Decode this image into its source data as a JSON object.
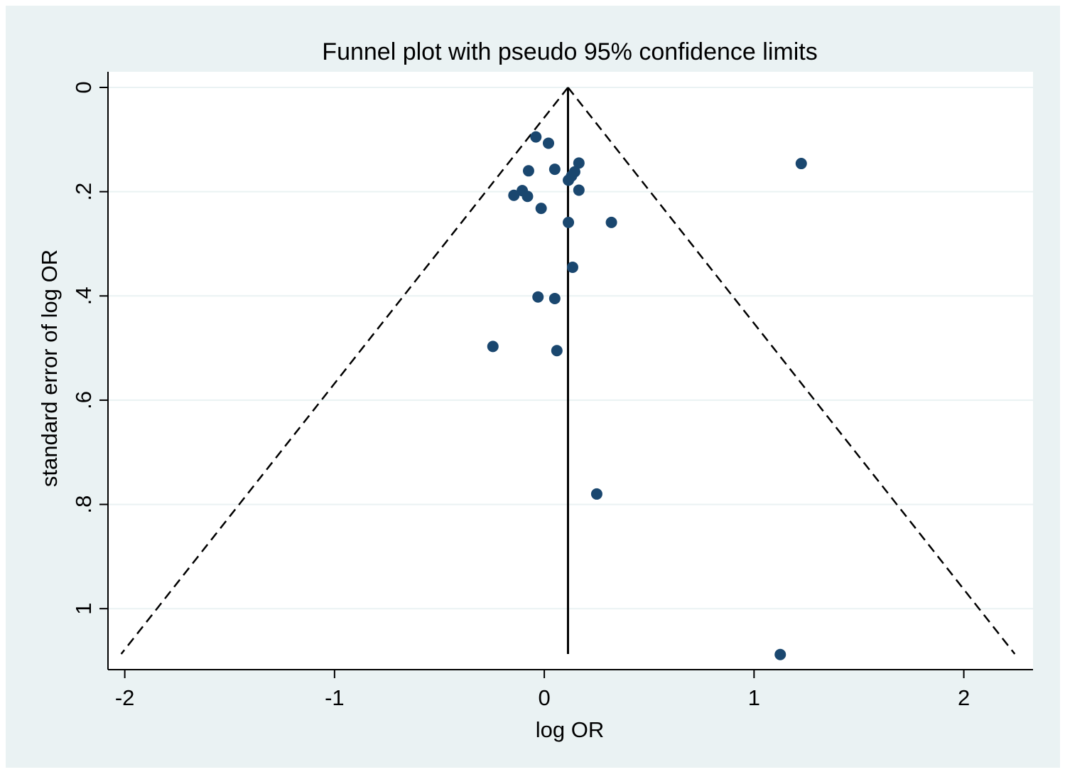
{
  "chart_data": {
    "type": "scatter",
    "title": "Funnel plot with pseudo 95% confidence limits",
    "xlabel": "log OR",
    "ylabel": "standard error of log OR",
    "xlim": [
      -2.08,
      2.33
    ],
    "ylim": [
      1.117,
      -0.03
    ],
    "y_reversed": true,
    "x_ticks": [
      -2,
      -1,
      0,
      1,
      2
    ],
    "x_tick_labels": [
      "-2",
      "-1",
      "0",
      "1",
      "2"
    ],
    "y_ticks": [
      0,
      0.2,
      0.4,
      0.6,
      0.8,
      1
    ],
    "y_tick_labels": [
      "0",
      ".2",
      ".4",
      ".6",
      ".8",
      "1"
    ],
    "grid": true,
    "pooled_estimate": 0.113,
    "funnel": {
      "apex": [
        0.113,
        0
      ],
      "base_se": 1.087,
      "base_left_x": -2.017,
      "base_right_x": 2.243
    },
    "points": [
      {
        "x": -0.04,
        "y": 0.095
      },
      {
        "x": 0.02,
        "y": 0.107
      },
      {
        "x": 0.165,
        "y": 0.145
      },
      {
        "x": 1.225,
        "y": 0.146
      },
      {
        "x": -0.075,
        "y": 0.16
      },
      {
        "x": 0.05,
        "y": 0.157
      },
      {
        "x": 0.145,
        "y": 0.162
      },
      {
        "x": 0.13,
        "y": 0.17
      },
      {
        "x": 0.115,
        "y": 0.178
      },
      {
        "x": 0.165,
        "y": 0.197
      },
      {
        "x": -0.105,
        "y": 0.198
      },
      {
        "x": -0.145,
        "y": 0.207
      },
      {
        "x": -0.08,
        "y": 0.209
      },
      {
        "x": -0.015,
        "y": 0.232
      },
      {
        "x": 0.115,
        "y": 0.259
      },
      {
        "x": 0.32,
        "y": 0.259
      },
      {
        "x": 0.135,
        "y": 0.345
      },
      {
        "x": -0.03,
        "y": 0.402
      },
      {
        "x": 0.05,
        "y": 0.405
      },
      {
        "x": -0.245,
        "y": 0.497
      },
      {
        "x": 0.06,
        "y": 0.505
      },
      {
        "x": 0.25,
        "y": 0.78
      },
      {
        "x": 1.125,
        "y": 1.088
      }
    ],
    "colors": {
      "background": "#eaf2f3",
      "plot_region": "#ffffff",
      "grid": "#eaf2f3",
      "marker": "#1a476f",
      "line": "#000000"
    }
  }
}
